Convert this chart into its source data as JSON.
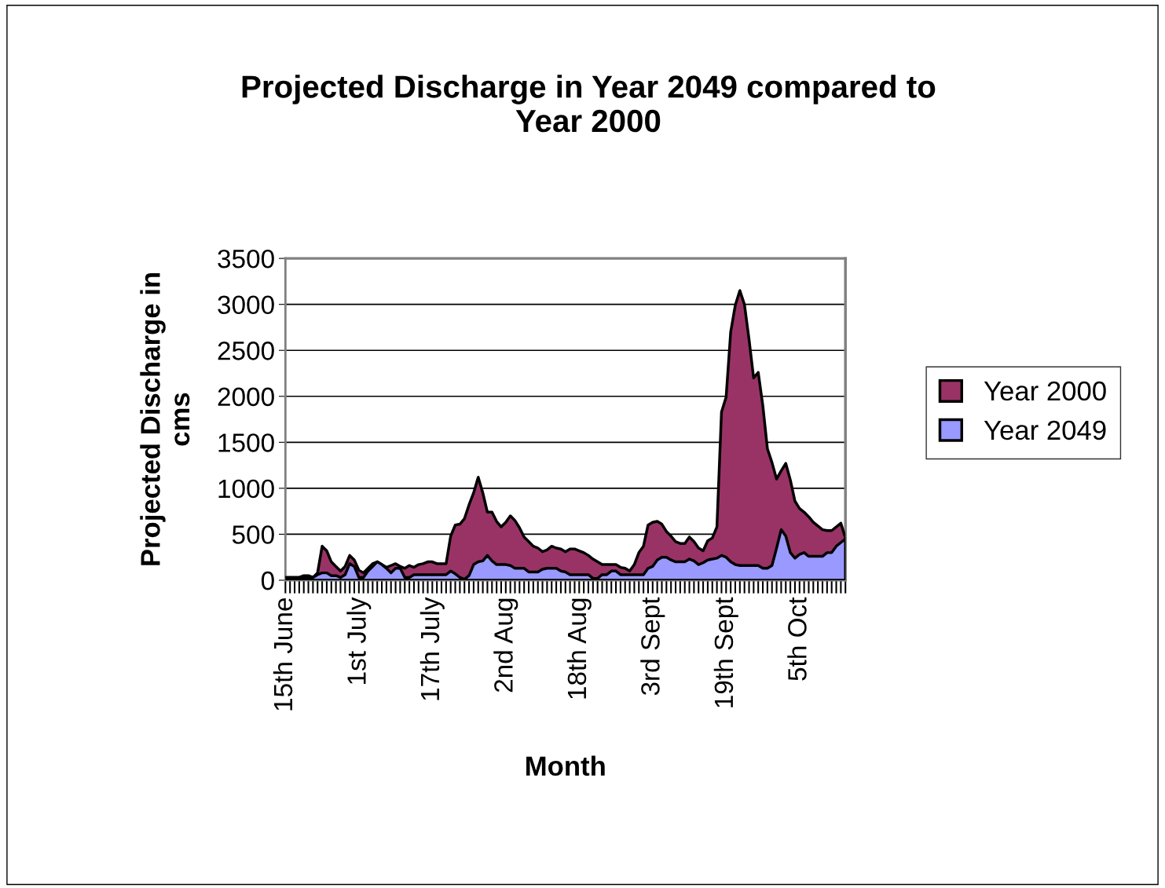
{
  "chart_data": {
    "type": "area",
    "title": "Projected Discharge in Year 2049 compared to Year 2000",
    "xlabel": "Month",
    "ylabel": "Projected Discharge in cms",
    "categories": [
      "15th June",
      null,
      null,
      null,
      null,
      null,
      null,
      null,
      null,
      null,
      null,
      null,
      null,
      null,
      null,
      null,
      "1st July",
      null,
      null,
      null,
      null,
      null,
      null,
      null,
      null,
      null,
      null,
      null,
      null,
      null,
      null,
      null,
      "17th July",
      null,
      null,
      null,
      null,
      null,
      null,
      null,
      null,
      null,
      null,
      null,
      null,
      null,
      null,
      null,
      "2nd Aug",
      null,
      null,
      null,
      null,
      null,
      null,
      null,
      null,
      null,
      null,
      null,
      null,
      null,
      null,
      null,
      "18th Aug",
      null,
      null,
      null,
      null,
      null,
      null,
      null,
      null,
      null,
      null,
      null,
      null,
      null,
      null,
      null,
      "3rd Sept",
      null,
      null,
      null,
      null,
      null,
      null,
      null,
      null,
      null,
      null,
      null,
      null,
      null,
      null,
      null,
      "19th Sept",
      null,
      null,
      null,
      null,
      null,
      null,
      null,
      null,
      null,
      null,
      null,
      null,
      null,
      null,
      null,
      "5th Oct",
      null,
      null,
      null,
      null,
      null,
      null,
      null,
      null,
      null,
      null
    ],
    "series": [
      {
        "name": "Year 2000",
        "color": "#993366",
        "values": [
          30,
          30,
          30,
          30,
          50,
          50,
          30,
          80,
          370,
          320,
          200,
          150,
          100,
          150,
          270,
          220,
          110,
          80,
          130,
          180,
          200,
          170,
          140,
          160,
          180,
          150,
          130,
          160,
          140,
          170,
          180,
          200,
          200,
          180,
          180,
          180,
          480,
          600,
          610,
          670,
          820,
          950,
          1120,
          950,
          740,
          740,
          640,
          580,
          630,
          700,
          650,
          570,
          470,
          420,
          370,
          350,
          310,
          330,
          370,
          350,
          340,
          310,
          340,
          340,
          320,
          300,
          270,
          230,
          200,
          170,
          170,
          170,
          170,
          140,
          130,
          100,
          170,
          300,
          370,
          600,
          630,
          640,
          610,
          530,
          480,
          420,
          400,
          400,
          470,
          420,
          350,
          320,
          430,
          460,
          580,
          1830,
          1990,
          2700,
          2990,
          3150,
          3000,
          2620,
          2200,
          2260,
          1900,
          1430,
          1280,
          1100,
          1190,
          1270,
          1090,
          860,
          780,
          740,
          690,
          630,
          590,
          550,
          540,
          540,
          580,
          620,
          460
        ]
      },
      {
        "name": "Year 2049",
        "color": "#9999ff",
        "values": [
          30,
          30,
          30,
          30,
          30,
          30,
          30,
          60,
          80,
          80,
          50,
          50,
          30,
          60,
          180,
          150,
          30,
          30,
          100,
          150,
          200,
          170,
          130,
          80,
          130,
          130,
          30,
          30,
          60,
          60,
          60,
          60,
          60,
          60,
          60,
          60,
          100,
          70,
          30,
          10,
          50,
          170,
          200,
          210,
          270,
          210,
          170,
          170,
          170,
          160,
          130,
          130,
          130,
          90,
          90,
          90,
          120,
          130,
          130,
          130,
          100,
          90,
          60,
          60,
          60,
          60,
          60,
          20,
          20,
          60,
          60,
          100,
          100,
          60,
          60,
          60,
          60,
          60,
          60,
          130,
          150,
          220,
          250,
          250,
          220,
          200,
          200,
          200,
          230,
          210,
          170,
          190,
          220,
          230,
          240,
          270,
          250,
          200,
          170,
          160,
          160,
          160,
          160,
          160,
          130,
          130,
          160,
          350,
          550,
          480,
          300,
          240,
          280,
          300,
          260,
          260,
          260,
          260,
          300,
          300,
          370,
          410,
          450
        ]
      }
    ],
    "ylim": [
      0,
      3500
    ],
    "yticks": [
      0,
      500,
      1000,
      1500,
      2000,
      2500,
      3000,
      3500
    ],
    "grid": "y",
    "legend": "right"
  }
}
